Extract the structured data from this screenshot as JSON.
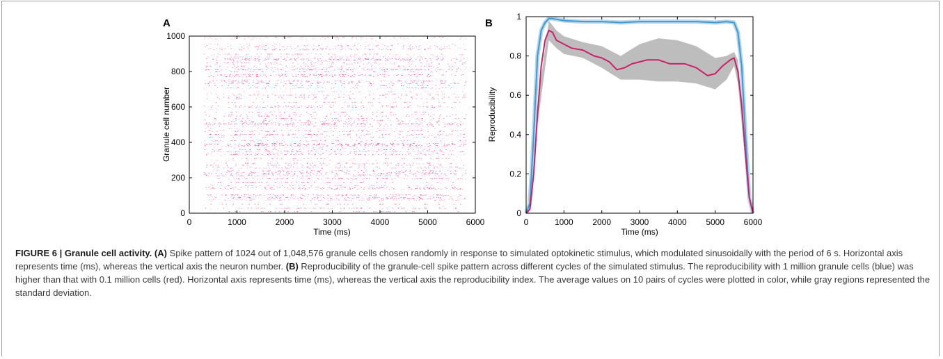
{
  "chart_data": [
    {
      "type": "scatter",
      "panel_label": "A",
      "xlabel": "Time (ms)",
      "ylabel": "Granule cell number",
      "xlim": [
        0,
        6000
      ],
      "ylim": [
        0,
        1000
      ],
      "xticks": [
        "0",
        "1000",
        "2000",
        "3000",
        "4000",
        "5000",
        "6000"
      ],
      "yticks": [
        "0",
        "200",
        "400",
        "600",
        "800",
        "1000"
      ],
      "series": [
        {
          "color": "#e0207a",
          "description_values": {
            "n_cells": 1024,
            "active_window_ms": [
              300,
              5800
            ]
          }
        }
      ]
    },
    {
      "type": "line",
      "panel_label": "B",
      "xlabel": "Time (ms)",
      "ylabel": "Reproducibility",
      "xlim": [
        0,
        6000
      ],
      "ylim": [
        0,
        1
      ],
      "xticks": [
        "0",
        "1000",
        "2000",
        "3000",
        "4000",
        "5000",
        "6000"
      ],
      "yticks": [
        "0",
        "0.2",
        "0.4",
        "0.6",
        "0.8",
        "1"
      ],
      "series": [
        {
          "color": "#3c9bd6",
          "x": [
            0,
            100,
            200,
            300,
            400,
            500,
            600,
            700,
            1000,
            1500,
            2000,
            2500,
            3000,
            3500,
            4000,
            4500,
            5000,
            5300,
            5500,
            5600,
            5700,
            5800,
            5900,
            6000
          ],
          "y": [
            0,
            0.05,
            0.4,
            0.8,
            0.93,
            0.97,
            0.99,
            0.99,
            0.98,
            0.975,
            0.975,
            0.97,
            0.975,
            0.975,
            0.975,
            0.975,
            0.97,
            0.975,
            0.97,
            0.92,
            0.75,
            0.4,
            0.08,
            0
          ]
        },
        {
          "color": "#cc1f6a",
          "x": [
            0,
            100,
            200,
            300,
            400,
            500,
            600,
            700,
            800,
            1000,
            1200,
            1500,
            1800,
            2000,
            2200,
            2400,
            2600,
            2800,
            3000,
            3200,
            3500,
            3800,
            4000,
            4200,
            4500,
            4800,
            5000,
            5200,
            5400,
            5500,
            5600,
            5700,
            5800,
            5900,
            6000
          ],
          "y": [
            0,
            0.02,
            0.2,
            0.5,
            0.75,
            0.88,
            0.93,
            0.92,
            0.88,
            0.86,
            0.84,
            0.83,
            0.8,
            0.79,
            0.77,
            0.73,
            0.74,
            0.76,
            0.77,
            0.78,
            0.78,
            0.76,
            0.76,
            0.76,
            0.74,
            0.7,
            0.71,
            0.75,
            0.78,
            0.79,
            0.72,
            0.55,
            0.3,
            0.08,
            0
          ]
        },
        {
          "color": "#bdbdbd",
          "x": [
            0,
            300,
            600,
            800,
            1000,
            1500,
            2000,
            2500,
            3000,
            3500,
            4000,
            4500,
            5000,
            5300,
            5500,
            5600,
            5800,
            6000
          ],
          "lower": [
            0,
            0.45,
            0.88,
            0.84,
            0.81,
            0.79,
            0.74,
            0.68,
            0.68,
            0.67,
            0.67,
            0.66,
            0.63,
            0.68,
            0.75,
            0.66,
            0.25,
            0
          ],
          "upper": [
            0,
            0.55,
            0.98,
            0.93,
            0.9,
            0.87,
            0.85,
            0.8,
            0.86,
            0.89,
            0.88,
            0.85,
            0.79,
            0.8,
            0.82,
            0.78,
            0.35,
            0
          ]
        }
      ]
    }
  ],
  "caption": {
    "figure_label": "FIGURE 6 | Granule cell activity.",
    "a_label": "(A)",
    "a_text": " Spike pattern of 1024 out of 1,048,576 granule cells chosen randomly in response to simulated optokinetic stimulus, which modulated sinusoidally with the period of 6 s. Horizontal axis represents time (ms), whereas the vertical axis the neuron number. ",
    "b_label": "(B)",
    "b_text": " Reproducibility of the granule-cell spike pattern across different cycles of the simulated stimulus. The reproducibility with 1 million granule cells (blue) was higher than that with 0.1 million cells (red). Horizontal axis represents time (ms), whereas the vertical axis the reproducibility index. The average values on 10 pairs of cycles were plotted in color, while gray regions represented the standard deviation."
  }
}
